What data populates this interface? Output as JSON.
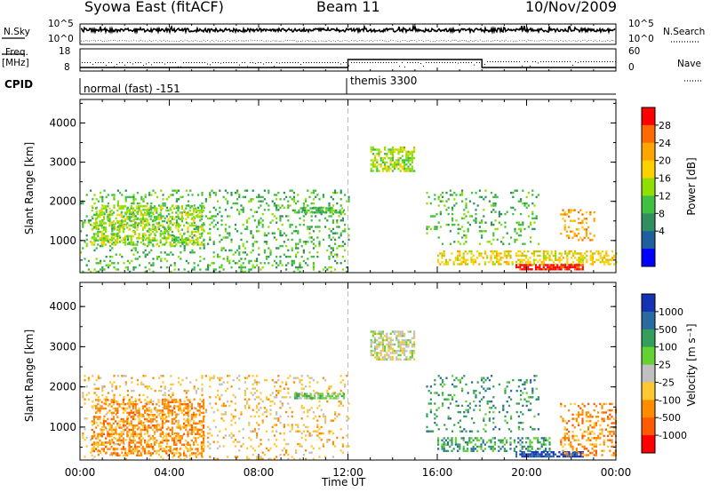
{
  "header": {
    "station": "Syowa East (fitACF)",
    "beam": "Beam 11",
    "date": "10/Nov/2009"
  },
  "summary": {
    "nsky_label": "N.Sky",
    "nsearch_label": "N.Search",
    "freq_label_1": "Freq.",
    "freq_label_2": "[MHz]",
    "nave_label": "Nave",
    "cpid_label": "CPID",
    "nsky_ticks": [
      "10^5",
      "10^0"
    ],
    "nsearch_ticks": [
      "10^5",
      "10^0"
    ],
    "freq_ticks": [
      "18",
      "8"
    ],
    "nave_ticks": [
      "60",
      "0"
    ]
  },
  "cpid": [
    {
      "name": "normal (fast) -151",
      "start_hour": 0,
      "end_hour": 12
    },
    {
      "name": "themis 3300",
      "start_hour": 12,
      "end_hour": 24
    }
  ],
  "colorbars": {
    "power": {
      "label": "Power [dB]",
      "ticks": [
        "28",
        "24",
        "20",
        "16",
        "12",
        "8",
        "4"
      ],
      "colors": [
        "#ff0000",
        "#ff6a00",
        "#ffa500",
        "#ffd000",
        "#8fe000",
        "#40c040",
        "#2f8f5f",
        "#1f5fa0",
        "#0000ff"
      ]
    },
    "velocity": {
      "label": "Velocity [m s⁻¹]",
      "ticks": [
        "1000",
        "500",
        "100",
        "25",
        "-25",
        "-100",
        "-500",
        "-1000"
      ],
      "colors": [
        "#1432b4",
        "#2a6aa0",
        "#32a05a",
        "#64d232",
        "#c0c0c0",
        "#ffc832",
        "#ff8c00",
        "#ff5a00",
        "#ff0000"
      ]
    }
  },
  "chart_data": [
    {
      "type": "heatmap",
      "title": "Power",
      "ylabel": "Slant Range [km]",
      "xlabel": "Time UT",
      "x_ticks": [
        "00:00",
        "04:00",
        "08:00",
        "12:00",
        "16:00",
        "20:00",
        "00:00"
      ],
      "y_ticks": [
        "4000",
        "3000",
        "2000",
        "1000"
      ],
      "xlim_hours": [
        0,
        24
      ],
      "ylim_km": [
        180,
        4600
      ],
      "regions": [
        {
          "t0": 0.0,
          "t1": 12.0,
          "r0": 200,
          "r1": 2300,
          "density": 0.18,
          "value": "8"
        },
        {
          "t0": 0.5,
          "t1": 5.5,
          "r0": 900,
          "r1": 1900,
          "density": 0.45,
          "value": "12"
        },
        {
          "t0": 9.5,
          "t1": 11.8,
          "r0": 1700,
          "r1": 1850,
          "density": 0.6,
          "value": "8"
        },
        {
          "t0": 13.0,
          "t1": 15.0,
          "r0": 2800,
          "r1": 3400,
          "density": 0.55,
          "value": "12"
        },
        {
          "t0": 15.5,
          "t1": 20.5,
          "r0": 900,
          "r1": 2300,
          "density": 0.15,
          "value": "8"
        },
        {
          "t0": 16.0,
          "t1": 24.0,
          "r0": 400,
          "r1": 750,
          "density": 0.45,
          "value": "16"
        },
        {
          "t0": 19.5,
          "t1": 22.5,
          "r0": 250,
          "r1": 400,
          "density": 0.8,
          "value": "28"
        },
        {
          "t0": 21.5,
          "t1": 23.0,
          "r0": 1000,
          "r1": 1800,
          "density": 0.25,
          "value": "20"
        }
      ]
    },
    {
      "type": "heatmap",
      "title": "Velocity",
      "ylabel": "Slant Range [km]",
      "xlabel": "Time UT",
      "x_ticks": [
        "00:00",
        "04:00",
        "08:00",
        "12:00",
        "16:00",
        "20:00",
        "00:00"
      ],
      "y_ticks": [
        "4000",
        "3000",
        "2000",
        "1000"
      ],
      "xlim_hours": [
        0,
        24
      ],
      "ylim_km": [
        180,
        4600
      ],
      "regions": [
        {
          "t0": 0.0,
          "t1": 12.0,
          "r0": 200,
          "r1": 2300,
          "density": 0.15,
          "value": "-100"
        },
        {
          "t0": 0.5,
          "t1": 5.5,
          "r0": 300,
          "r1": 1700,
          "density": 0.45,
          "value": "-500"
        },
        {
          "t0": 9.5,
          "t1": 11.8,
          "r0": 1700,
          "r1": 1850,
          "density": 0.6,
          "value": "25"
        },
        {
          "t0": 13.0,
          "t1": 15.0,
          "r0": 2700,
          "r1": 3400,
          "density": 0.6,
          "value": "-25"
        },
        {
          "t0": 15.5,
          "t1": 20.5,
          "r0": 900,
          "r1": 2300,
          "density": 0.15,
          "value": "100"
        },
        {
          "t0": 16.0,
          "t1": 21.0,
          "r0": 400,
          "r1": 750,
          "density": 0.45,
          "value": "100"
        },
        {
          "t0": 19.5,
          "t1": 22.5,
          "r0": 250,
          "r1": 400,
          "density": 0.8,
          "value": "1000"
        },
        {
          "t0": 21.5,
          "t1": 24.0,
          "r0": 300,
          "r1": 1600,
          "density": 0.3,
          "value": "-500"
        }
      ]
    }
  ]
}
